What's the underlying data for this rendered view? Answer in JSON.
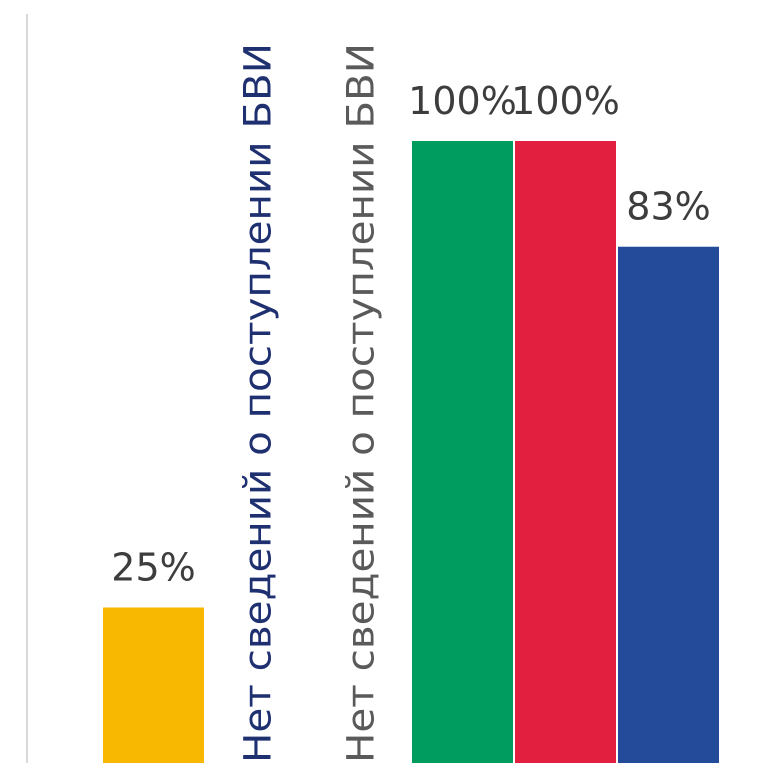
{
  "chart_data": {
    "type": "bar",
    "value_unit": "%",
    "ylim": [
      0,
      100
    ],
    "grid": false,
    "legend": "none",
    "axis_color": "#d9d9d9",
    "bars": [
      {
        "label": "25%",
        "value": 25,
        "color": "#f8b700"
      },
      {
        "label": "Нет сведений о поступлении БВИ",
        "value": null,
        "color": "#1f3070",
        "no_data": true
      },
      {
        "label": "Нет сведений о поступлении БВИ",
        "value": null,
        "color": "#5a5a5a",
        "no_data": true
      },
      {
        "label": "100%",
        "value": 100,
        "color": "#009b5e"
      },
      {
        "label": "100%",
        "value": 100,
        "color": "#e21f3e"
      },
      {
        "label": "83%",
        "value": 83,
        "color": "#244a9a"
      }
    ]
  }
}
